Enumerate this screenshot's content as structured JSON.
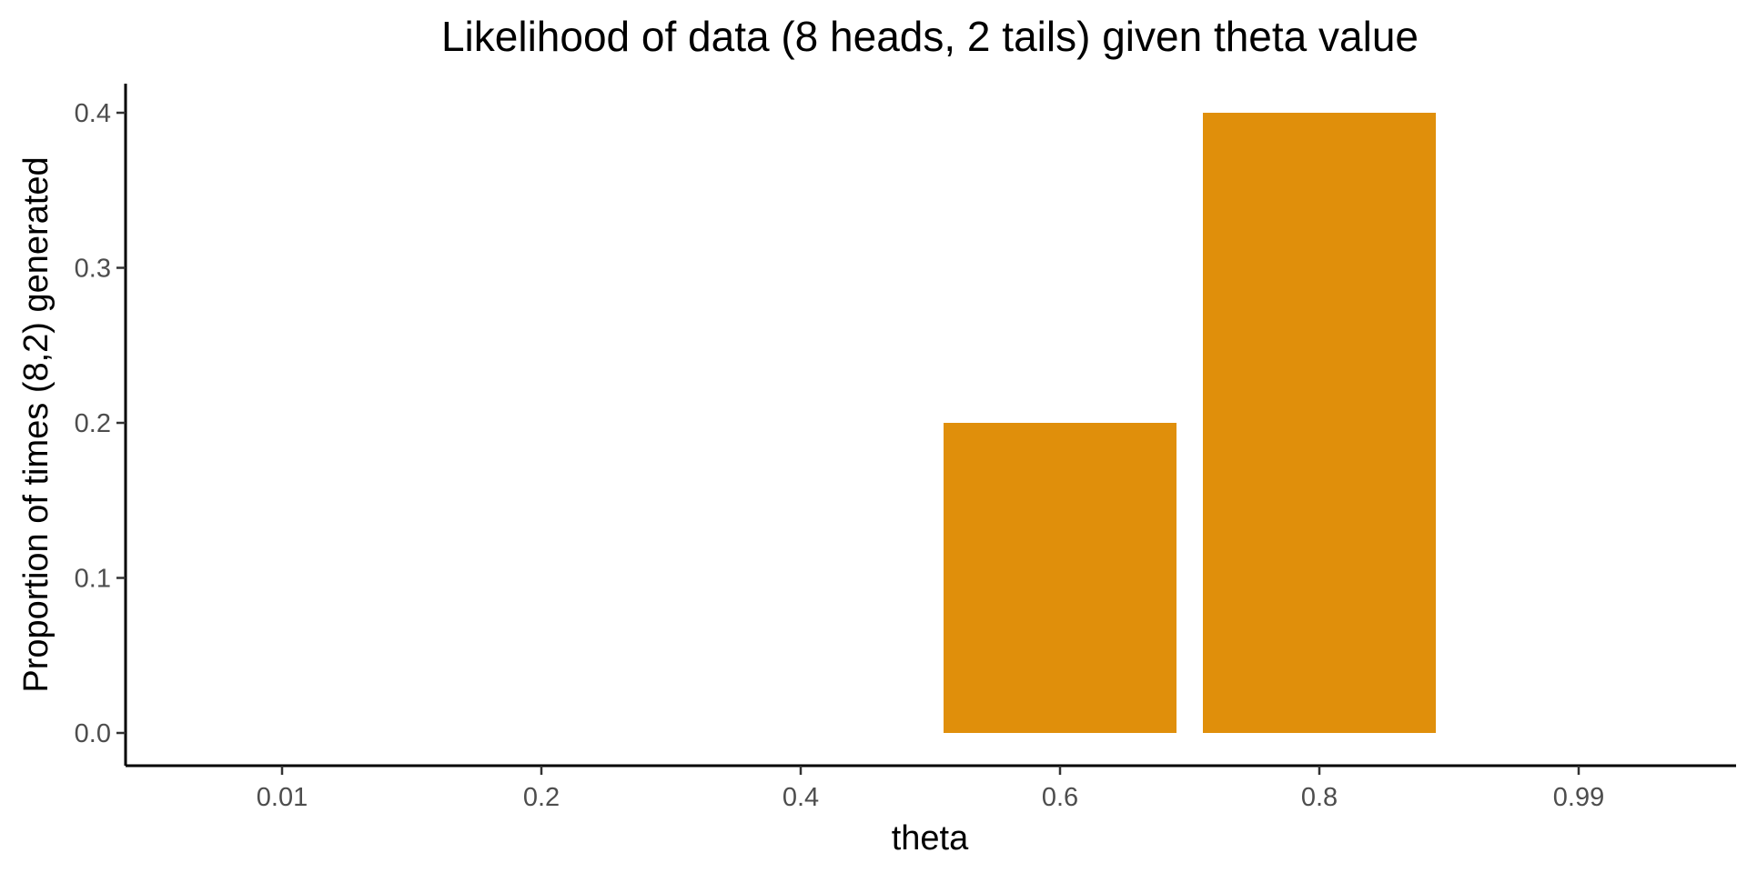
{
  "chart_data": {
    "type": "bar",
    "title": "Likelihood of data (8 heads, 2 tails) given theta value",
    "xlabel": "theta",
    "ylabel": "Proportion of times (8,2) generated",
    "categories": [
      "0.01",
      "0.2",
      "0.4",
      "0.6",
      "0.8",
      "0.99"
    ],
    "values": [
      0,
      0,
      0,
      0.2,
      0.4,
      0
    ],
    "ylim": [
      0,
      0.4
    ],
    "yticks": [
      "0.0",
      "0.1",
      "0.2",
      "0.3",
      "0.4"
    ],
    "bar_color": "#E08F0B",
    "grid": false,
    "legend": "none"
  }
}
